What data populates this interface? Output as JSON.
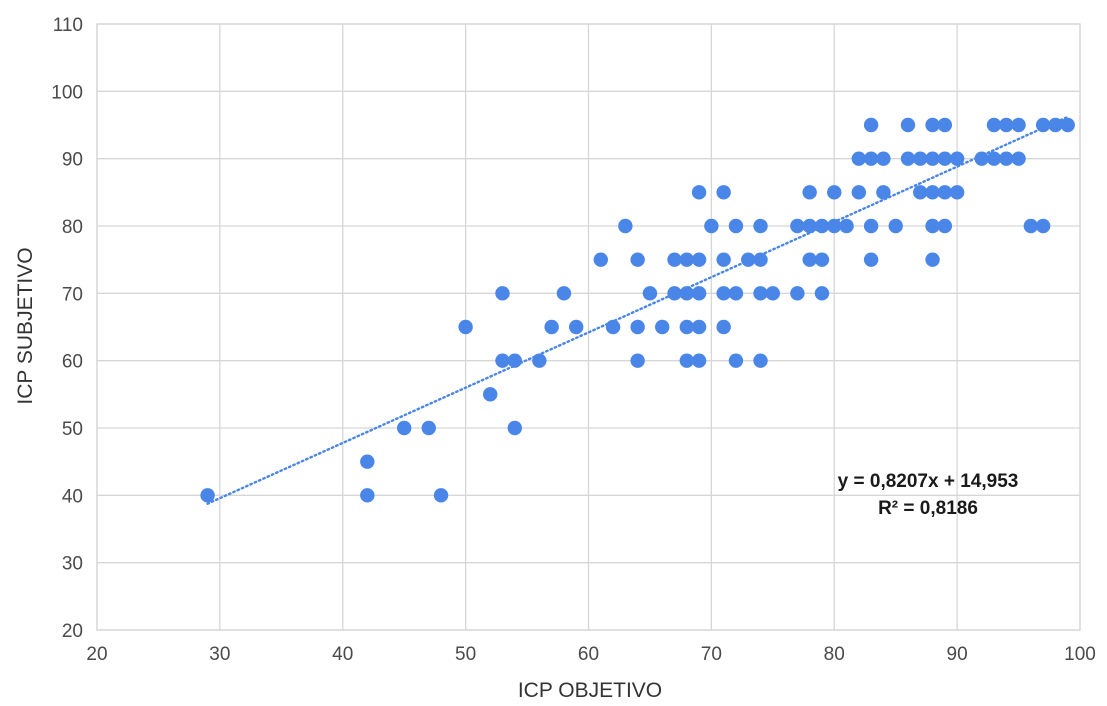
{
  "chart_data": {
    "type": "scatter",
    "xlabel": "ICP OBJETIVO",
    "ylabel": "ICP SUBJETIVO",
    "xlim": [
      20,
      100
    ],
    "ylim": [
      20,
      110
    ],
    "xticks": [
      20,
      30,
      40,
      50,
      60,
      70,
      80,
      90,
      100
    ],
    "yticks": [
      20,
      30,
      40,
      50,
      60,
      70,
      80,
      90,
      100,
      110
    ],
    "grid": true,
    "point_color": "#4a86e8",
    "trendline": {
      "slope": 0.8207,
      "intercept": 14.953,
      "x_range": [
        29,
        99
      ],
      "style": "dotted",
      "color": "#4a86e8",
      "equation_label": "y = 0,8207x + 14,953",
      "r2_label": "R² = 0,8186"
    },
    "series": [
      {
        "points": [
          [
            29,
            40
          ],
          [
            42,
            45
          ],
          [
            42,
            40
          ],
          [
            45,
            50
          ],
          [
            47,
            50
          ],
          [
            48,
            40
          ],
          [
            50,
            65
          ],
          [
            52,
            55
          ],
          [
            53,
            70
          ],
          [
            53,
            60
          ],
          [
            54,
            60
          ],
          [
            54,
            50
          ],
          [
            56,
            60
          ],
          [
            57,
            65
          ],
          [
            58,
            70
          ],
          [
            59,
            65
          ],
          [
            61,
            75
          ],
          [
            62,
            65
          ],
          [
            63,
            80
          ],
          [
            64,
            75
          ],
          [
            64,
            65
          ],
          [
            64,
            60
          ],
          [
            65,
            70
          ],
          [
            66,
            65
          ],
          [
            67,
            75
          ],
          [
            67,
            70
          ],
          [
            68,
            75
          ],
          [
            68,
            70
          ],
          [
            68,
            65
          ],
          [
            68,
            60
          ],
          [
            69,
            85
          ],
          [
            69,
            75
          ],
          [
            69,
            70
          ],
          [
            69,
            65
          ],
          [
            69,
            60
          ],
          [
            70,
            80
          ],
          [
            71,
            85
          ],
          [
            71,
            75
          ],
          [
            71,
            70
          ],
          [
            71,
            65
          ],
          [
            72,
            80
          ],
          [
            72,
            70
          ],
          [
            72,
            60
          ],
          [
            73,
            75
          ],
          [
            74,
            80
          ],
          [
            74,
            75
          ],
          [
            74,
            70
          ],
          [
            74,
            60
          ],
          [
            75,
            70
          ],
          [
            77,
            80
          ],
          [
            77,
            70
          ],
          [
            78,
            85
          ],
          [
            78,
            80
          ],
          [
            78,
            75
          ],
          [
            79,
            80
          ],
          [
            79,
            75
          ],
          [
            79,
            70
          ],
          [
            80,
            85
          ],
          [
            80,
            80
          ],
          [
            81,
            80
          ],
          [
            82,
            90
          ],
          [
            82,
            85
          ],
          [
            83,
            95
          ],
          [
            83,
            90
          ],
          [
            83,
            80
          ],
          [
            83,
            75
          ],
          [
            84,
            90
          ],
          [
            84,
            85
          ],
          [
            85,
            80
          ],
          [
            86,
            95
          ],
          [
            86,
            90
          ],
          [
            87,
            90
          ],
          [
            87,
            85
          ],
          [
            88,
            95
          ],
          [
            88,
            90
          ],
          [
            88,
            85
          ],
          [
            88,
            80
          ],
          [
            88,
            75
          ],
          [
            89,
            95
          ],
          [
            89,
            90
          ],
          [
            89,
            85
          ],
          [
            89,
            80
          ],
          [
            90,
            90
          ],
          [
            90,
            85
          ],
          [
            92,
            90
          ],
          [
            93,
            95
          ],
          [
            93,
            90
          ],
          [
            94,
            95
          ],
          [
            94,
            90
          ],
          [
            95,
            95
          ],
          [
            95,
            90
          ],
          [
            96,
            80
          ],
          [
            97,
            95
          ],
          [
            97,
            80
          ],
          [
            98,
            95
          ],
          [
            99,
            95
          ]
        ]
      }
    ]
  }
}
